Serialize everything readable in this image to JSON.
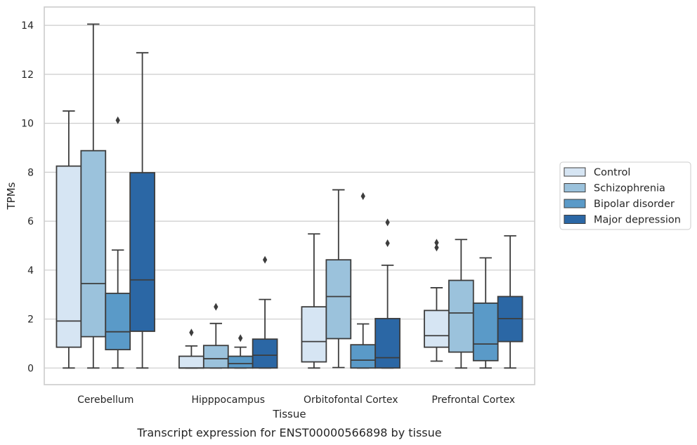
{
  "caption": "Transcript expression for ENST00000566898 by tissue",
  "chart_data": {
    "type": "box",
    "xlabel": "Tissue",
    "ylabel": "TPMs",
    "ylim": [
      -0.68,
      14.75
    ],
    "yticks": [
      0,
      2,
      4,
      6,
      8,
      10,
      12,
      14
    ],
    "grid": "horizontal",
    "legend_placement": "right",
    "categories": [
      "Cerebellum",
      "Hipppocampus",
      "Orbitofontal Cortex",
      "Prefrontal Cortex"
    ],
    "series": [
      {
        "name": "Control",
        "color": "#d6e5f3",
        "boxes": [
          {
            "whislo": 0,
            "q1": 0.85,
            "med": 1.92,
            "q3": 8.25,
            "whishi": 10.5,
            "fliers": []
          },
          {
            "whislo": 0,
            "q1": 0,
            "med": 0,
            "q3": 0.48,
            "whishi": 0.9,
            "fliers": [
              1.45
            ]
          },
          {
            "whislo": 0,
            "q1": 0.25,
            "med": 1.08,
            "q3": 2.5,
            "whishi": 5.48,
            "fliers": []
          },
          {
            "whislo": 0.28,
            "q1": 0.85,
            "med": 1.32,
            "q3": 2.35,
            "whishi": 3.28,
            "fliers": [
              4.92,
              5.12
            ]
          }
        ]
      },
      {
        "name": "Schizophrenia",
        "color": "#9bc2dc",
        "boxes": [
          {
            "whislo": 0,
            "q1": 1.28,
            "med": 3.45,
            "q3": 8.88,
            "whishi": 14.05,
            "fliers": []
          },
          {
            "whislo": 0,
            "q1": 0,
            "med": 0.38,
            "q3": 0.92,
            "whishi": 1.82,
            "fliers": [
              2.5
            ]
          },
          {
            "whislo": 0.02,
            "q1": 1.2,
            "med": 2.92,
            "q3": 4.42,
            "whishi": 7.28,
            "fliers": []
          },
          {
            "whislo": 0,
            "q1": 0.65,
            "med": 2.25,
            "q3": 3.58,
            "whishi": 5.25,
            "fliers": []
          }
        ]
      },
      {
        "name": "Bipolar disorder",
        "color": "#5a9ac8",
        "boxes": [
          {
            "whislo": 0,
            "q1": 0.75,
            "med": 1.48,
            "q3": 3.05,
            "whishi": 4.82,
            "fliers": [
              10.12
            ]
          },
          {
            "whislo": 0,
            "q1": 0,
            "med": 0.18,
            "q3": 0.48,
            "whishi": 0.85,
            "fliers": [
              1.22
            ]
          },
          {
            "whislo": 0,
            "q1": 0,
            "med": 0.32,
            "q3": 0.95,
            "whishi": 1.8,
            "fliers": [
              7.02
            ]
          },
          {
            "whislo": 0,
            "q1": 0.3,
            "med": 0.98,
            "q3": 2.65,
            "whishi": 4.5,
            "fliers": []
          }
        ]
      },
      {
        "name": "Major depression",
        "color": "#2b67a5",
        "boxes": [
          {
            "whislo": 0,
            "q1": 1.5,
            "med": 3.6,
            "q3": 7.98,
            "whishi": 12.88,
            "fliers": []
          },
          {
            "whislo": 0,
            "q1": 0,
            "med": 0.52,
            "q3": 1.18,
            "whishi": 2.8,
            "fliers": [
              4.42
            ]
          },
          {
            "whislo": 0,
            "q1": 0,
            "med": 0.42,
            "q3": 2.02,
            "whishi": 4.2,
            "fliers": [
              5.1,
              5.95
            ]
          },
          {
            "whislo": 0,
            "q1": 1.08,
            "med": 2.02,
            "q3": 2.92,
            "whishi": 5.4,
            "fliers": []
          }
        ]
      }
    ]
  }
}
